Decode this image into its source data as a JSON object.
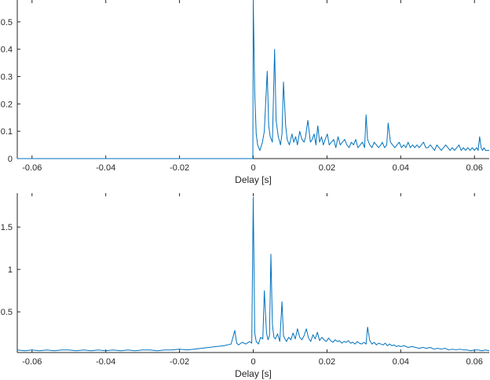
{
  "chart_data": [
    {
      "type": "line",
      "title": "",
      "xlabel": "Delay [s]",
      "ylabel": "",
      "xlim": [
        -0.064,
        0.064
      ],
      "ylim": [
        0,
        0.58
      ],
      "x_ticks": [
        -0.06,
        -0.04,
        -0.02,
        0,
        0.02,
        0.04,
        0.06
      ],
      "x_tick_labels": [
        "-0.06",
        "-0.04",
        "-0.02",
        "0",
        "0.02",
        "0.04",
        "0.06"
      ],
      "y_ticks": [
        0,
        0.1,
        0.2,
        0.3,
        0.4,
        0.5
      ],
      "y_tick_labels": [
        "0",
        "0.1",
        "0.2",
        "0.3",
        "0.4",
        "0.5"
      ],
      "grid": false,
      "color": "#0072bd",
      "series": [
        {
          "x": [
            -0.064,
            -0.04,
            -0.02,
            -0.0001,
            0.0,
            0.0004,
            0.0008,
            0.0012,
            0.0018,
            0.0025,
            0.003,
            0.0038,
            0.0042,
            0.0046,
            0.0052,
            0.0058,
            0.0062,
            0.0068,
            0.0074,
            0.0078,
            0.0082,
            0.0088,
            0.0092,
            0.0098,
            0.0105,
            0.011,
            0.0115,
            0.012,
            0.0126,
            0.0132,
            0.0138,
            0.0142,
            0.0148,
            0.0155,
            0.016,
            0.0165,
            0.017,
            0.0175,
            0.018,
            0.0185,
            0.019,
            0.0195,
            0.0201,
            0.0206,
            0.0212,
            0.0218,
            0.0224,
            0.023,
            0.0236,
            0.0242,
            0.0248,
            0.0254,
            0.026,
            0.0266,
            0.0272,
            0.0278,
            0.0284,
            0.029,
            0.0296,
            0.0302,
            0.0306,
            0.031,
            0.0316,
            0.0322,
            0.0328,
            0.0334,
            0.034,
            0.0346,
            0.035,
            0.0356,
            0.0362,
            0.0366,
            0.0372,
            0.0378,
            0.0384,
            0.039,
            0.0396,
            0.0402,
            0.0408,
            0.0414,
            0.042,
            0.0426,
            0.0432,
            0.0438,
            0.0444,
            0.045,
            0.0456,
            0.0462,
            0.0468,
            0.0474,
            0.048,
            0.0486,
            0.0492,
            0.0498,
            0.0504,
            0.051,
            0.0516,
            0.0522,
            0.0528,
            0.0534,
            0.054,
            0.0546,
            0.0552,
            0.0558,
            0.0564,
            0.057,
            0.0576,
            0.0582,
            0.0588,
            0.0594,
            0.06,
            0.0606,
            0.061,
            0.0614,
            0.0618,
            0.0622,
            0.0626,
            0.063,
            0.0634,
            0.064
          ],
          "y": [
            0,
            0,
            0,
            0,
            0.58,
            0.24,
            0.09,
            0.05,
            0.03,
            0.06,
            0.1,
            0.32,
            0.12,
            0.08,
            0.06,
            0.4,
            0.14,
            0.08,
            0.05,
            0.09,
            0.28,
            0.12,
            0.07,
            0.05,
            0.09,
            0.06,
            0.08,
            0.05,
            0.1,
            0.07,
            0.06,
            0.08,
            0.14,
            0.06,
            0.07,
            0.09,
            0.05,
            0.12,
            0.06,
            0.08,
            0.05,
            0.07,
            0.09,
            0.05,
            0.06,
            0.07,
            0.04,
            0.08,
            0.05,
            0.06,
            0.07,
            0.05,
            0.04,
            0.06,
            0.05,
            0.07,
            0.04,
            0.05,
            0.06,
            0.04,
            0.16,
            0.07,
            0.05,
            0.04,
            0.06,
            0.05,
            0.04,
            0.05,
            0.06,
            0.04,
            0.05,
            0.13,
            0.06,
            0.05,
            0.04,
            0.05,
            0.06,
            0.04,
            0.05,
            0.04,
            0.06,
            0.04,
            0.05,
            0.04,
            0.05,
            0.04,
            0.05,
            0.06,
            0.04,
            0.04,
            0.05,
            0.04,
            0.03,
            0.05,
            0.04,
            0.03,
            0.04,
            0.05,
            0.04,
            0.03,
            0.04,
            0.03,
            0.04,
            0.05,
            0.03,
            0.04,
            0.03,
            0.04,
            0.03,
            0.04,
            0.03,
            0.04,
            0.03,
            0.08,
            0.04,
            0.03,
            0.04,
            0.03,
            0.03,
            0.03
          ]
        }
      ]
    },
    {
      "type": "line",
      "title": "",
      "xlabel": "Delay [s]",
      "ylabel": "",
      "xlim": [
        -0.064,
        0.064
      ],
      "ylim": [
        0.02,
        1.9
      ],
      "x_ticks": [
        -0.06,
        -0.04,
        -0.02,
        0,
        0.02,
        0.04,
        0.06
      ],
      "x_tick_labels": [
        "-0.06",
        "-0.04",
        "-0.02",
        "0",
        "0.02",
        "0.04",
        "0.06"
      ],
      "y_ticks": [
        0.5,
        1,
        1.5
      ],
      "y_tick_labels": [
        "0.5",
        "1",
        "1.5"
      ],
      "grid": false,
      "color": "#0072bd",
      "series": [
        {
          "x": [
            -0.064,
            -0.062,
            -0.06,
            -0.058,
            -0.056,
            -0.054,
            -0.052,
            -0.05,
            -0.048,
            -0.046,
            -0.044,
            -0.042,
            -0.04,
            -0.038,
            -0.036,
            -0.034,
            -0.032,
            -0.03,
            -0.028,
            -0.026,
            -0.024,
            -0.022,
            -0.02,
            -0.018,
            -0.016,
            -0.014,
            -0.012,
            -0.01,
            -0.008,
            -0.006,
            -0.005,
            -0.0045,
            -0.004,
            -0.003,
            -0.002,
            -0.001,
            -0.0004,
            0.0,
            0.0004,
            0.0008,
            0.0014,
            0.002,
            0.0026,
            0.003,
            0.0036,
            0.004,
            0.0044,
            0.0048,
            0.0052,
            0.0056,
            0.006,
            0.0066,
            0.0072,
            0.0078,
            0.0082,
            0.0086,
            0.009,
            0.0096,
            0.0102,
            0.0108,
            0.0114,
            0.012,
            0.0126,
            0.0132,
            0.0138,
            0.0144,
            0.015,
            0.0156,
            0.0162,
            0.0168,
            0.0174,
            0.018,
            0.0186,
            0.0192,
            0.0198,
            0.0204,
            0.021,
            0.0216,
            0.0222,
            0.0228,
            0.0234,
            0.024,
            0.0246,
            0.0252,
            0.0258,
            0.0264,
            0.027,
            0.0276,
            0.0282,
            0.0288,
            0.0294,
            0.03,
            0.0306,
            0.031,
            0.0316,
            0.0322,
            0.0328,
            0.0334,
            0.034,
            0.0346,
            0.0352,
            0.0358,
            0.0364,
            0.037,
            0.0376,
            0.0382,
            0.0388,
            0.0394,
            0.04,
            0.041,
            0.042,
            0.043,
            0.044,
            0.045,
            0.046,
            0.047,
            0.048,
            0.049,
            0.05,
            0.051,
            0.052,
            0.053,
            0.054,
            0.055,
            0.056,
            0.057,
            0.058,
            0.059,
            0.06,
            0.061,
            0.062,
            0.063,
            0.064
          ],
          "y": [
            0.05,
            0.04,
            0.05,
            0.04,
            0.05,
            0.04,
            0.05,
            0.05,
            0.04,
            0.05,
            0.04,
            0.05,
            0.04,
            0.05,
            0.04,
            0.05,
            0.04,
            0.05,
            0.05,
            0.04,
            0.05,
            0.05,
            0.06,
            0.05,
            0.06,
            0.07,
            0.08,
            0.09,
            0.1,
            0.12,
            0.28,
            0.13,
            0.11,
            0.14,
            0.12,
            0.15,
            0.13,
            1.85,
            0.25,
            0.15,
            0.12,
            0.2,
            0.18,
            0.75,
            0.25,
            0.17,
            0.22,
            1.18,
            0.35,
            0.2,
            0.18,
            0.24,
            0.15,
            0.62,
            0.22,
            0.18,
            0.15,
            0.2,
            0.17,
            0.25,
            0.18,
            0.3,
            0.2,
            0.17,
            0.22,
            0.3,
            0.19,
            0.15,
            0.23,
            0.18,
            0.26,
            0.16,
            0.2,
            0.17,
            0.15,
            0.19,
            0.16,
            0.14,
            0.17,
            0.15,
            0.16,
            0.13,
            0.15,
            0.14,
            0.16,
            0.13,
            0.14,
            0.12,
            0.15,
            0.13,
            0.12,
            0.14,
            0.12,
            0.32,
            0.16,
            0.12,
            0.14,
            0.11,
            0.13,
            0.12,
            0.11,
            0.13,
            0.1,
            0.12,
            0.1,
            0.11,
            0.09,
            0.1,
            0.09,
            0.1,
            0.08,
            0.09,
            0.08,
            0.07,
            0.08,
            0.07,
            0.08,
            0.06,
            0.07,
            0.06,
            0.07,
            0.05,
            0.06,
            0.05,
            0.06,
            0.05,
            0.05,
            0.04,
            0.05,
            0.05,
            0.04,
            0.05,
            0.04
          ]
        }
      ]
    }
  ]
}
